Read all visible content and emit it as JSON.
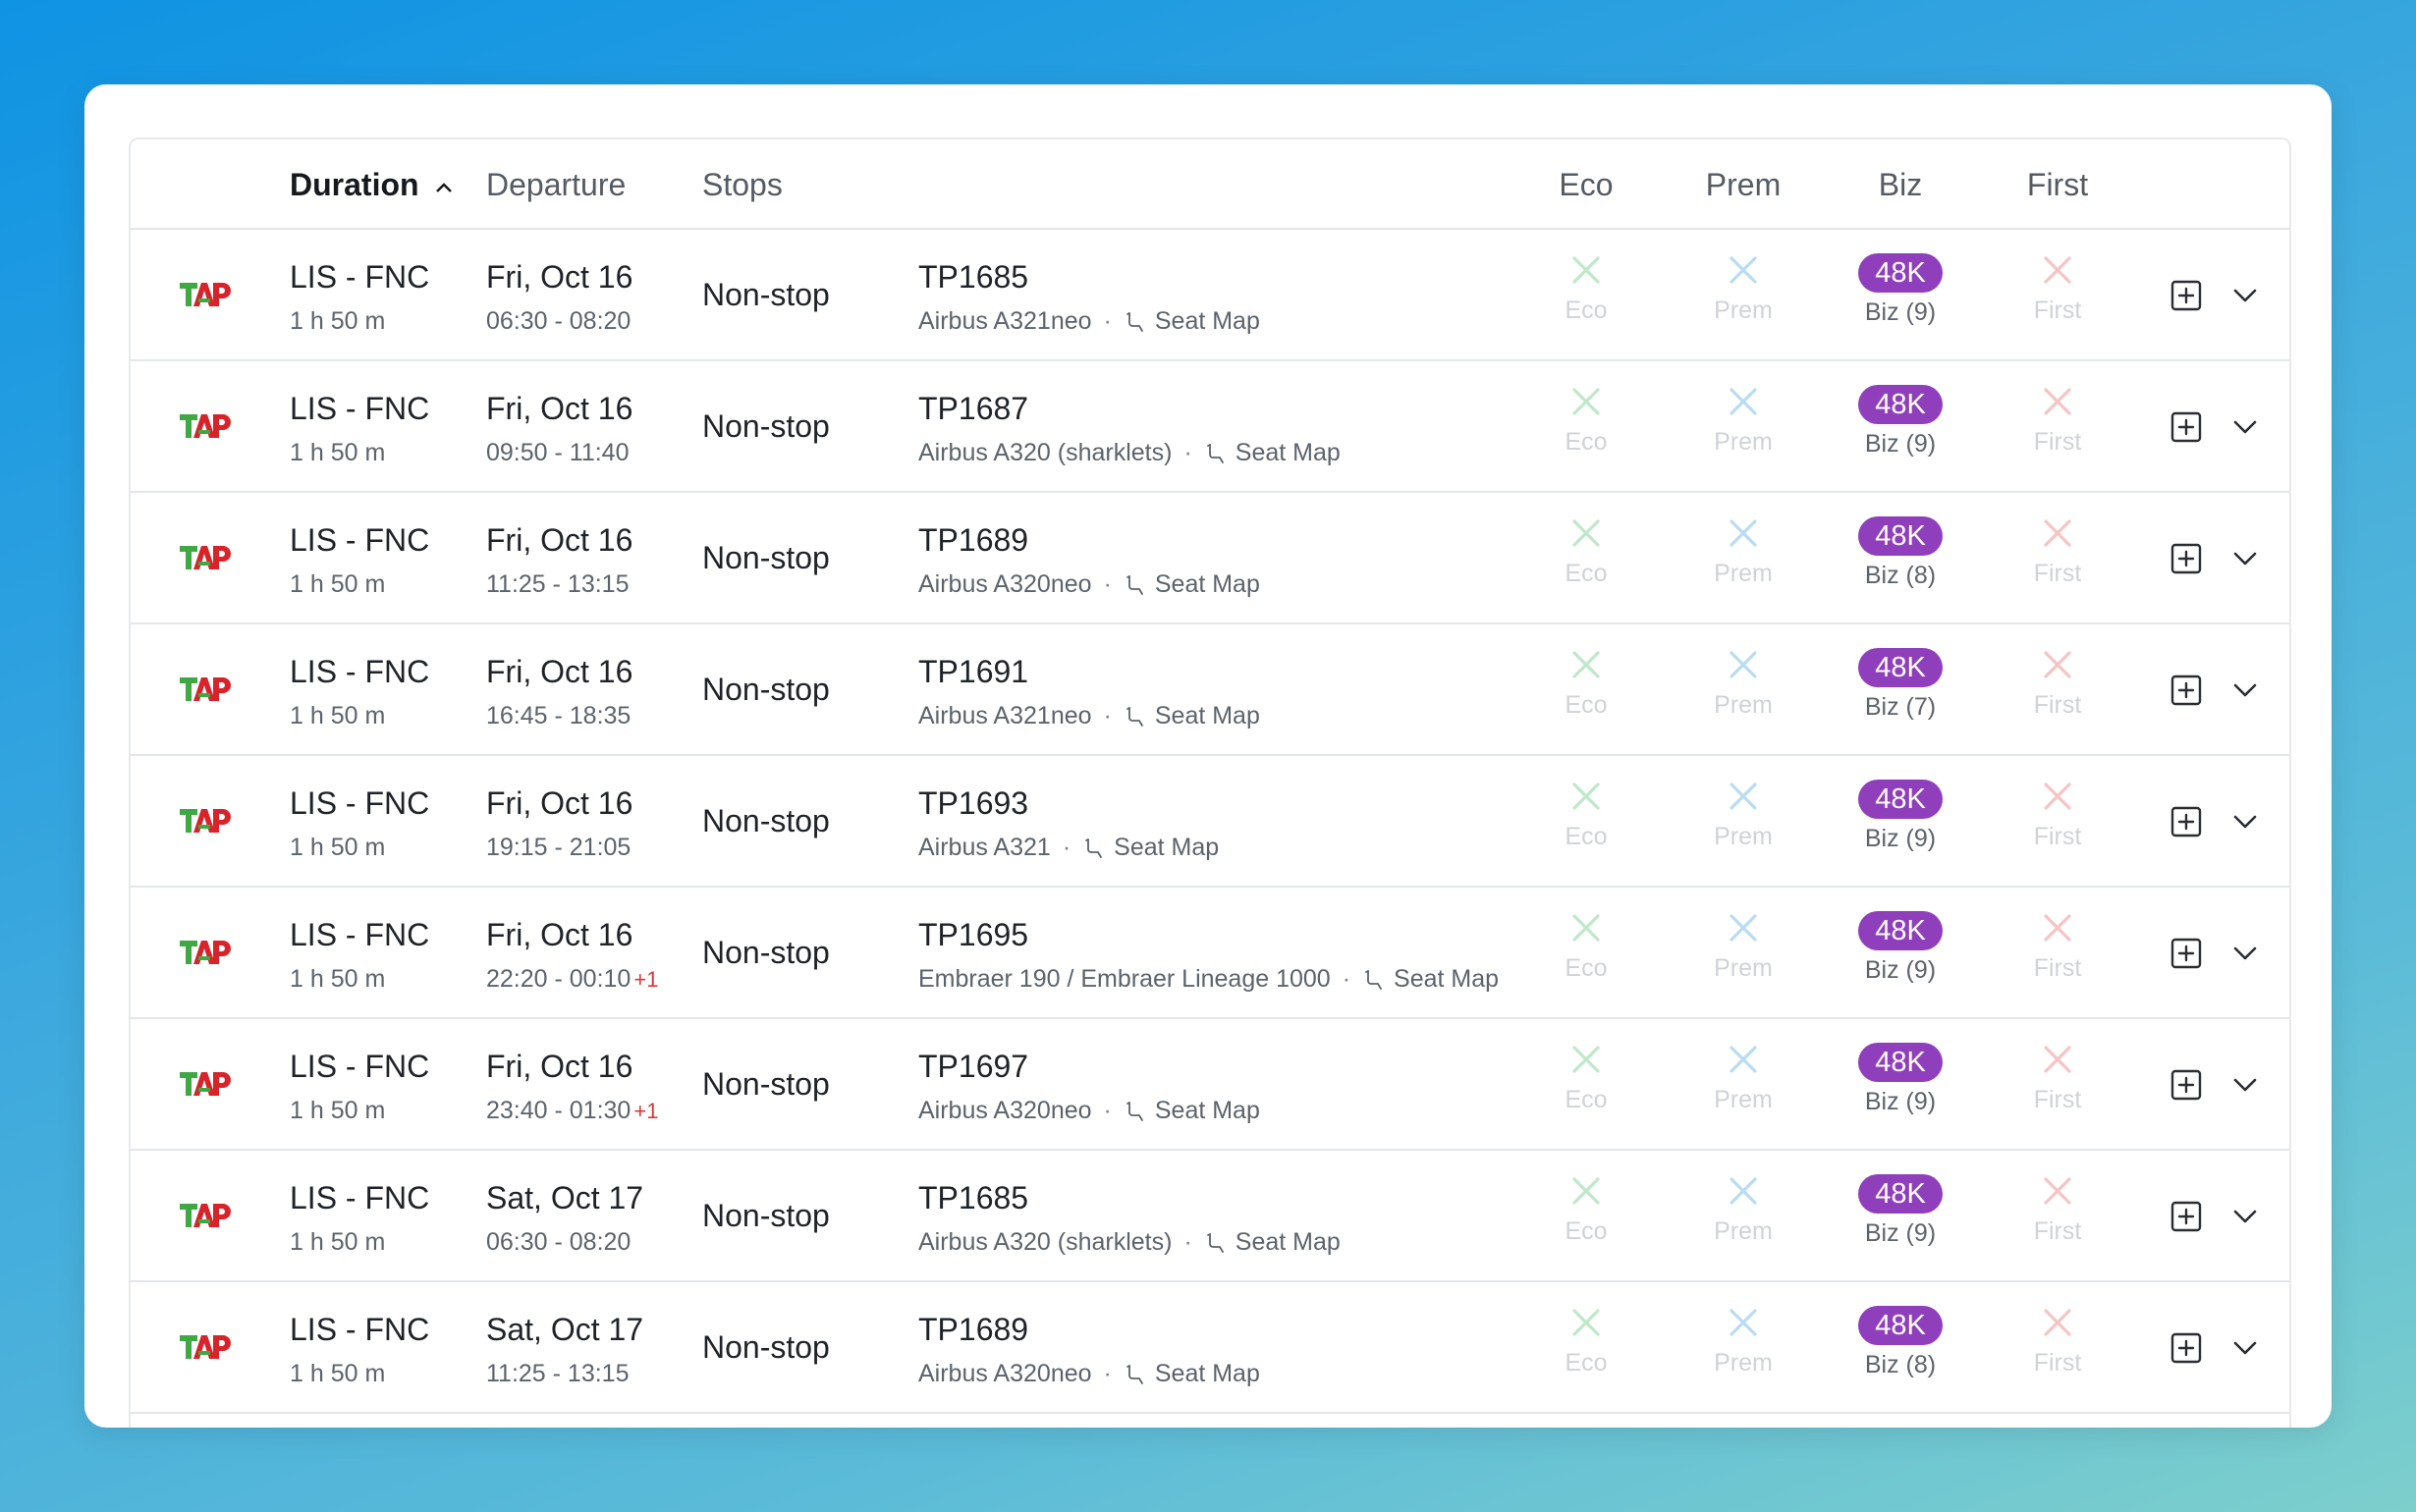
{
  "header": {
    "duration": "Duration",
    "departure": "Departure",
    "stops": "Stops",
    "eco": "Eco",
    "prem": "Prem",
    "biz": "Biz",
    "first": "First"
  },
  "colors": {
    "badge": "#8f3fbb",
    "eco_x": "#bfe8c9",
    "prem_x": "#b9dcf2",
    "first_x": "#f6c4c4",
    "plus_day": "#d33a3a"
  },
  "seat_map_label": "Seat Map",
  "rows": [
    {
      "route": "LIS - FNC",
      "duration": "1 h 50 m",
      "date": "Fri, Oct 16",
      "times": "06:30 - 08:20",
      "plus_day": "",
      "stops": "Non-stop",
      "flight": "TP1685",
      "aircraft": "Airbus A321neo",
      "eco": "Eco",
      "prem": "Prem",
      "biz_price": "48K",
      "biz_seats": "Biz (9)",
      "first": "First"
    },
    {
      "route": "LIS - FNC",
      "duration": "1 h 50 m",
      "date": "Fri, Oct 16",
      "times": "09:50 - 11:40",
      "plus_day": "",
      "stops": "Non-stop",
      "flight": "TP1687",
      "aircraft": "Airbus A320 (sharklets)",
      "eco": "Eco",
      "prem": "Prem",
      "biz_price": "48K",
      "biz_seats": "Biz (9)",
      "first": "First"
    },
    {
      "route": "LIS - FNC",
      "duration": "1 h 50 m",
      "date": "Fri, Oct 16",
      "times": "11:25 - 13:15",
      "plus_day": "",
      "stops": "Non-stop",
      "flight": "TP1689",
      "aircraft": "Airbus A320neo",
      "eco": "Eco",
      "prem": "Prem",
      "biz_price": "48K",
      "biz_seats": "Biz (8)",
      "first": "First"
    },
    {
      "route": "LIS - FNC",
      "duration": "1 h 50 m",
      "date": "Fri, Oct 16",
      "times": "16:45 - 18:35",
      "plus_day": "",
      "stops": "Non-stop",
      "flight": "TP1691",
      "aircraft": "Airbus A321neo",
      "eco": "Eco",
      "prem": "Prem",
      "biz_price": "48K",
      "biz_seats": "Biz (7)",
      "first": "First"
    },
    {
      "route": "LIS - FNC",
      "duration": "1 h 50 m",
      "date": "Fri, Oct 16",
      "times": "19:15 - 21:05",
      "plus_day": "",
      "stops": "Non-stop",
      "flight": "TP1693",
      "aircraft": "Airbus A321",
      "eco": "Eco",
      "prem": "Prem",
      "biz_price": "48K",
      "biz_seats": "Biz (9)",
      "first": "First"
    },
    {
      "route": "LIS - FNC",
      "duration": "1 h 50 m",
      "date": "Fri, Oct 16",
      "times": "22:20 - 00:10",
      "plus_day": "+1",
      "stops": "Non-stop",
      "flight": "TP1695",
      "aircraft": "Embraer 190 / Embraer Lineage 1000",
      "eco": "Eco",
      "prem": "Prem",
      "biz_price": "48K",
      "biz_seats": "Biz (9)",
      "first": "First"
    },
    {
      "route": "LIS - FNC",
      "duration": "1 h 50 m",
      "date": "Fri, Oct 16",
      "times": "23:40 - 01:30",
      "plus_day": "+1",
      "stops": "Non-stop",
      "flight": "TP1697",
      "aircraft": "Airbus A320neo",
      "eco": "Eco",
      "prem": "Prem",
      "biz_price": "48K",
      "biz_seats": "Biz (9)",
      "first": "First"
    },
    {
      "route": "LIS - FNC",
      "duration": "1 h 50 m",
      "date": "Sat, Oct 17",
      "times": "06:30 - 08:20",
      "plus_day": "",
      "stops": "Non-stop",
      "flight": "TP1685",
      "aircraft": "Airbus A320 (sharklets)",
      "eco": "Eco",
      "prem": "Prem",
      "biz_price": "48K",
      "biz_seats": "Biz (9)",
      "first": "First"
    },
    {
      "route": "LIS - FNC",
      "duration": "1 h 50 m",
      "date": "Sat, Oct 17",
      "times": "11:25 - 13:15",
      "plus_day": "",
      "stops": "Non-stop",
      "flight": "TP1689",
      "aircraft": "Airbus A320neo",
      "eco": "Eco",
      "prem": "Prem",
      "biz_price": "48K",
      "biz_seats": "Biz (8)",
      "first": "First"
    }
  ]
}
